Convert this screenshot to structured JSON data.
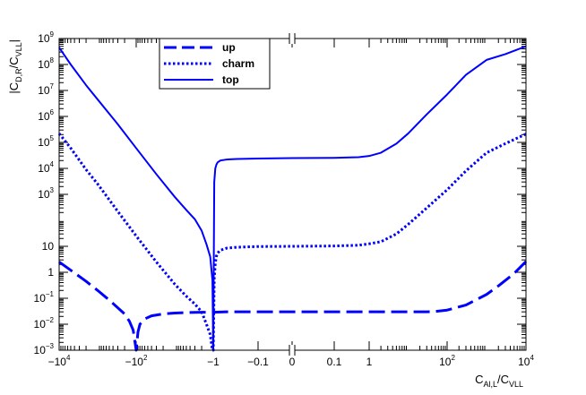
{
  "chart_data": {
    "type": "line",
    "title": "",
    "xlabel": "C",
    "xlabel_sub": "Al,L",
    "xlabel_sep": "/C",
    "xlabel_sub2": "VLL",
    "ylabel": "|C",
    "ylabel_sub": "D,R",
    "ylabel_sep": "/C",
    "ylabel_sub2": "VLL",
    "ylabel_end": "|",
    "x_scale": "symmetric-log (negative log | linear near 0 | positive log)",
    "y_scale": "log",
    "ylim": [
      0.001,
      1000000000
    ],
    "xlim": [
      -10000,
      10000
    ],
    "x_ticks": [
      {
        "value": -10000,
        "base": "−10",
        "exp": "4"
      },
      {
        "value": -100,
        "base": "−10",
        "exp": "2"
      },
      {
        "value": -1,
        "base": "−1",
        "exp": ""
      },
      {
        "value": -0.1,
        "base": "−0.1",
        "exp": ""
      },
      {
        "value": 0,
        "base": "0",
        "exp": ""
      },
      {
        "value": 0.1,
        "base": "0.1",
        "exp": ""
      },
      {
        "value": 1,
        "base": "1",
        "exp": ""
      },
      {
        "value": 100,
        "base": "10",
        "exp": "2"
      },
      {
        "value": 10000,
        "base": "10",
        "exp": "4"
      }
    ],
    "y_ticks": [
      {
        "value": 0.001,
        "base": "10",
        "exp": "−3"
      },
      {
        "value": 0.01,
        "base": "10",
        "exp": "−2"
      },
      {
        "value": 0.1,
        "base": "10",
        "exp": "−1"
      },
      {
        "value": 1,
        "base": "1",
        "exp": ""
      },
      {
        "value": 10,
        "base": "10",
        "exp": ""
      },
      {
        "value": 1000,
        "base": "10",
        "exp": "3"
      },
      {
        "value": 10000,
        "base": "10",
        "exp": "4"
      },
      {
        "value": 100000,
        "base": "10",
        "exp": "5"
      },
      {
        "value": 1000000,
        "base": "10",
        "exp": "6"
      },
      {
        "value": 10000000,
        "base": "10",
        "exp": "7"
      },
      {
        "value": 100000000,
        "base": "10",
        "exp": "8"
      },
      {
        "value": 1000000000,
        "base": "10",
        "exp": "9"
      }
    ],
    "legend_position": "top-left",
    "grid": false,
    "series": [
      {
        "name": "up",
        "style": "dashed",
        "color": "#0000ff",
        "x": [
          -10000,
          -5000,
          -2000,
          -1000,
          -500,
          -200,
          -150,
          -120,
          -100,
          -90,
          -80,
          -60,
          -40,
          -20,
          -10,
          -5,
          -2,
          -1,
          -0.5,
          0,
          0.5,
          1,
          10,
          30,
          50,
          100,
          300,
          1000,
          2000,
          5000,
          10000
        ],
        "y": [
          2.5,
          1.2,
          0.45,
          0.2,
          0.085,
          0.025,
          0.013,
          0.006,
          0.001,
          0.005,
          0.01,
          0.016,
          0.021,
          0.025,
          0.027,
          0.028,
          0.029,
          0.029,
          0.03,
          0.03,
          0.03,
          0.03,
          0.03,
          0.03,
          0.031,
          0.035,
          0.055,
          0.14,
          0.3,
          0.9,
          2.6
        ]
      },
      {
        "name": "charm",
        "style": "dotted",
        "color": "#0000ff",
        "x": [
          -10000,
          -5000,
          -2000,
          -1000,
          -300,
          -100,
          -30,
          -10,
          -5,
          -3,
          -2,
          -1.5,
          -1.2,
          -1.05,
          -1,
          -0.95,
          -0.9,
          -0.85,
          -0.8,
          -0.7,
          -0.5,
          -0.3,
          -0.1,
          0,
          0.1,
          0.5,
          1,
          2,
          5,
          10,
          30,
          100,
          300,
          1000,
          3000,
          10000
        ],
        "y": [
          220000,
          60000,
          9000,
          2500,
          220,
          25,
          2.5,
          0.35,
          0.12,
          0.06,
          0.03,
          0.01,
          0.004,
          0.001,
          0.001,
          0.6,
          2.2,
          4.2,
          5.5,
          7,
          8.5,
          9.2,
          9.8,
          10,
          10.3,
          11,
          12.5,
          15,
          30,
          70,
          300,
          1500,
          8000,
          40000,
          90000,
          210000
        ]
      },
      {
        "name": "top",
        "style": "solid",
        "color": "#0000ff",
        "x": [
          -10000,
          -5000,
          -2000,
          -1000,
          -300,
          -100,
          -30,
          -10,
          -5,
          -3,
          -2,
          -1.5,
          -1.2,
          -1.05,
          -1,
          -0.95,
          -0.9,
          -0.85,
          -0.8,
          -0.7,
          -0.5,
          -0.3,
          -0.1,
          0,
          0.1,
          0.5,
          1,
          2,
          5,
          10,
          30,
          100,
          300,
          1000,
          3000,
          10000
        ],
        "y": [
          450000000,
          100000000,
          16000000,
          4500000,
          500000,
          60000,
          6000,
          800,
          250,
          110,
          40,
          12,
          4,
          0.5,
          0.001,
          3000,
          10000,
          14000,
          17000,
          20000,
          22000,
          23000,
          24000,
          25000,
          25500,
          27000,
          30000,
          40000,
          90000,
          220000,
          1200000,
          7000000,
          40000000,
          150000000,
          250000000,
          500000000
        ]
      }
    ]
  }
}
